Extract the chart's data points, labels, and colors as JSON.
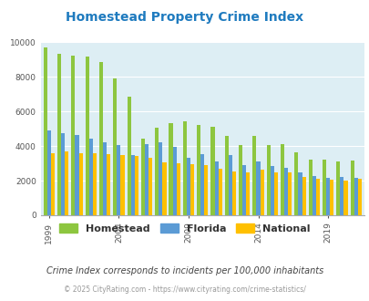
{
  "title": "Homestead Property Crime Index",
  "years": [
    1999,
    2000,
    2001,
    2002,
    2003,
    2004,
    2005,
    2006,
    2007,
    2008,
    2009,
    2010,
    2011,
    2012,
    2013,
    2014,
    2015,
    2016,
    2017,
    2018,
    2019,
    2020,
    2021
  ],
  "homestead": [
    9700,
    9300,
    9200,
    9150,
    8850,
    7900,
    6850,
    4450,
    5050,
    5300,
    5450,
    5200,
    5100,
    4600,
    4050,
    4600,
    4050,
    4100,
    3650,
    3200,
    3200,
    3100,
    3150
  ],
  "florida": [
    4900,
    4750,
    4650,
    4450,
    4200,
    4050,
    3450,
    4100,
    4200,
    3950,
    3300,
    3550,
    3100,
    3450,
    2900,
    3100,
    2850,
    2750,
    2450,
    2250,
    2150,
    2200,
    2150
  ],
  "national": [
    3600,
    3700,
    3600,
    3600,
    3550,
    3450,
    3400,
    3300,
    3050,
    3000,
    2950,
    2900,
    2700,
    2550,
    2500,
    2650,
    2450,
    2450,
    2200,
    2100,
    2050,
    2000,
    2100
  ],
  "colors": {
    "homestead": "#8dc63f",
    "florida": "#5b9bd5",
    "national": "#ffc000"
  },
  "bg_color": "#ddeef4",
  "ylim": [
    0,
    10000
  ],
  "yticks": [
    0,
    2000,
    4000,
    6000,
    8000,
    10000
  ],
  "xtick_years": [
    1999,
    2004,
    2009,
    2014,
    2019
  ],
  "subtitle": "Crime Index corresponds to incidents per 100,000 inhabitants",
  "footer": "© 2025 CityRating.com - https://www.cityrating.com/crime-statistics/",
  "title_color": "#1f7bbf",
  "subtitle_color": "#444444",
  "footer_color": "#999999"
}
